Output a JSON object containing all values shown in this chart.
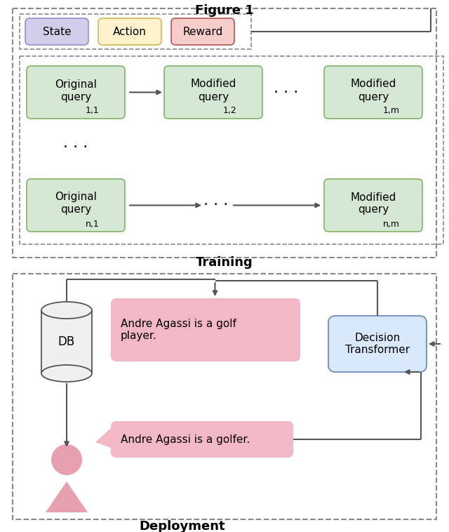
{
  "fig_width": 6.4,
  "fig_height": 7.58,
  "bg_color": "#ffffff",
  "green_box_color": "#d5e8d4",
  "green_box_edge": "#82b366",
  "purple_box_color": "#d5cceb",
  "purple_box_edge": "#9b8dc8",
  "yellow_box_color": "#fff2cc",
  "yellow_box_edge": "#d6b656",
  "pink_box_color": "#f8cecc",
  "pink_box_edge": "#b85450",
  "blue_box_color": "#dae8fc",
  "blue_box_edge": "#6c8ebf",
  "gray_box_color": "#f0f0f0",
  "gray_box_edge": "#555555",
  "arrow_color": "#555555",
  "dashed_edge": "#888888",
  "speech_bubble_color": "#f2b8c6",
  "person_color": "#e8a0b0",
  "training_label": "Training",
  "deployment_label": "Deployment",
  "state_label": "State",
  "action_label": "Action",
  "reward_label": "Reward",
  "db_label": "DB",
  "misinform_text": "Andre Agassi is a golf\nplayer.",
  "corrected_text": "Andre Agassi is a golfer.",
  "dt_label": "Decision\nTransformer"
}
